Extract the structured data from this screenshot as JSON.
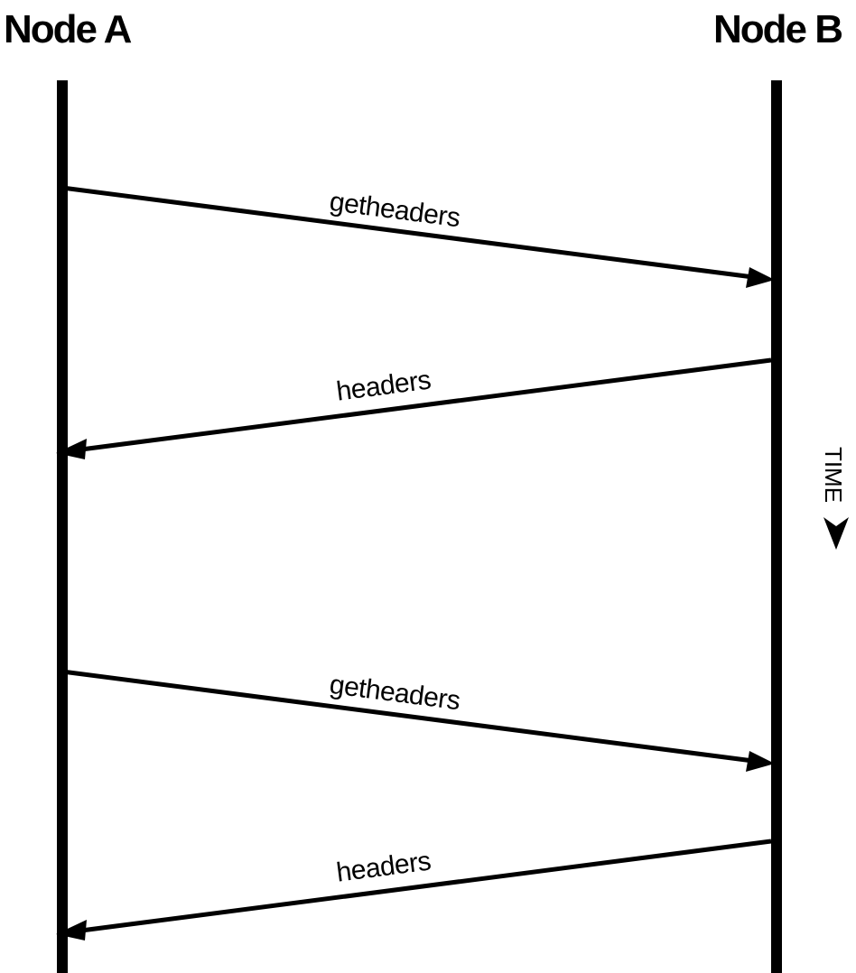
{
  "nodes": {
    "left": "Node A",
    "right": "Node B"
  },
  "time_label": "TIME",
  "messages": [
    {
      "label": "getheaders",
      "from": "Node A",
      "to": "Node B"
    },
    {
      "label": "headers",
      "from": "Node B",
      "to": "Node A"
    },
    {
      "label": "getheaders",
      "from": "Node A",
      "to": "Node B"
    },
    {
      "label": "headers",
      "from": "Node B",
      "to": "Node A"
    }
  ],
  "colors": {
    "line": "#000000",
    "background": "#ffffff"
  }
}
